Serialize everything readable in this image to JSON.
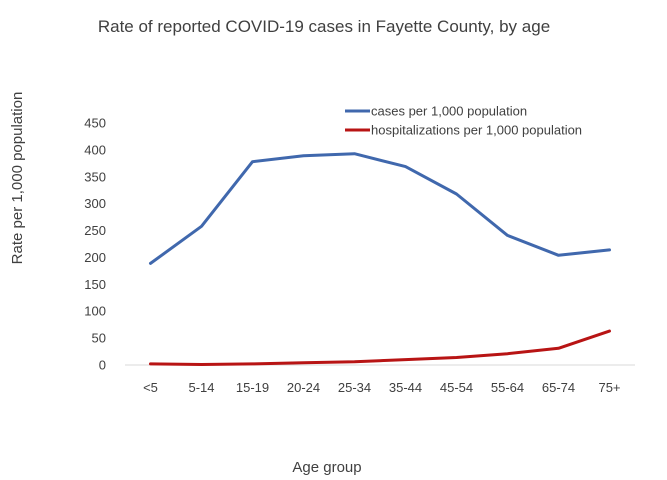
{
  "chart_data": {
    "type": "line",
    "title": "Rate of reported COVID-19 cases in Fayette County, by age",
    "xlabel": "Age group",
    "ylabel": "Rate per 1,000 population",
    "ylim": [
      0,
      450
    ],
    "yticks": [
      0,
      50,
      100,
      150,
      200,
      250,
      300,
      350,
      400,
      450
    ],
    "grid": false,
    "legend_position": "top-right",
    "categories": [
      "<5",
      "5-14",
      "15-19",
      "20-24",
      "25-34",
      "35-44",
      "45-54",
      "55-64",
      "65-74",
      "75+"
    ],
    "series": [
      {
        "name": "cases per 1,000 population",
        "color": "#4068ad",
        "values": [
          189,
          258,
          378,
          389,
          393,
          369,
          318,
          241,
          204,
          214
        ]
      },
      {
        "name": "hospitalizations per 1,000 population",
        "color": "#b81414",
        "values": [
          2,
          1,
          2,
          4,
          6,
          10,
          14,
          21,
          31,
          63
        ]
      }
    ]
  }
}
